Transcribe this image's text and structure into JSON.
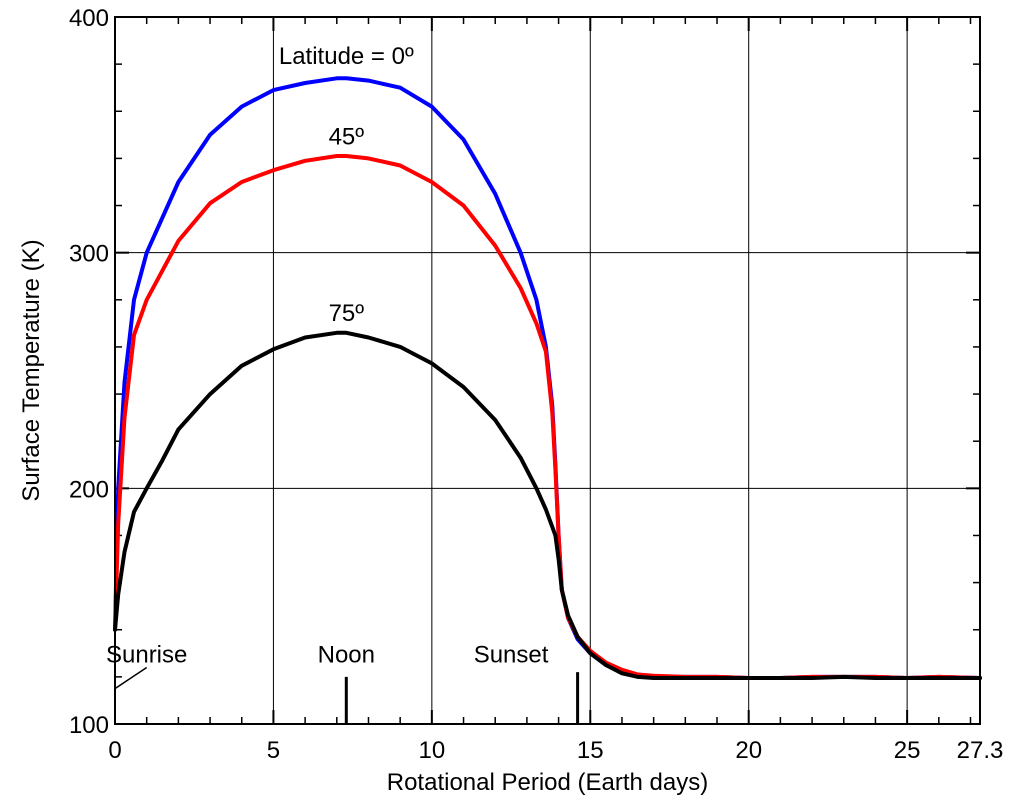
{
  "chart_data": {
    "type": "line",
    "title": "",
    "xlabel": "Rotational Period (Earth days)",
    "ylabel": "Surface Temperature (K)",
    "xlim": [
      0,
      27.3
    ],
    "ylim": [
      100,
      400
    ],
    "x_ticks": [
      0,
      5,
      10,
      15,
      20,
      25,
      27.3
    ],
    "x_tick_labels": [
      "0",
      "5",
      "10",
      "15",
      "20",
      "25",
      "27.3"
    ],
    "y_ticks": [
      100,
      200,
      300,
      400
    ],
    "y_tick_labels": [
      "100",
      "200",
      "300",
      "400"
    ],
    "grid": true,
    "series": [
      {
        "name": "Latitude = 0º",
        "color": "#0000ff",
        "x": [
          0.0,
          0.1,
          0.3,
          0.6,
          1.0,
          2.0,
          3.0,
          4.0,
          5.0,
          6.0,
          7.0,
          7.3,
          8.0,
          9.0,
          10.0,
          11.0,
          12.0,
          12.8,
          13.3,
          13.6,
          13.8,
          13.9,
          14.0,
          14.1,
          14.3,
          14.6,
          15.0,
          15.5,
          16.0,
          16.5,
          17.0,
          18.0,
          19.0,
          20.0,
          21.0,
          22.0,
          23.0,
          24.0,
          25.0,
          26.0,
          27.3
        ],
        "y": [
          140,
          200,
          245,
          280,
          300,
          330,
          350,
          362,
          369,
          372,
          374,
          374,
          373,
          370,
          362,
          348,
          325,
          300,
          280,
          260,
          235,
          210,
          180,
          157,
          145,
          136,
          130,
          125,
          122,
          121,
          120,
          120,
          120,
          119.5,
          119.5,
          120,
          120,
          120,
          119.5,
          120,
          119.5
        ]
      },
      {
        "name": "45º",
        "color": "#ff0000",
        "x": [
          0.0,
          0.1,
          0.3,
          0.6,
          1.0,
          2.0,
          3.0,
          4.0,
          5.0,
          6.0,
          7.0,
          7.3,
          8.0,
          9.0,
          10.0,
          11.0,
          12.0,
          12.8,
          13.3,
          13.6,
          13.8,
          13.9,
          14.0,
          14.1,
          14.3,
          14.6,
          15.0,
          15.5,
          16.0,
          16.5,
          17.0,
          18.0,
          19.0,
          20.0,
          21.0,
          22.0,
          23.0,
          24.0,
          25.0,
          26.0,
          27.3
        ],
        "y": [
          140,
          185,
          230,
          265,
          280,
          305,
          321,
          330,
          335,
          339,
          341,
          341,
          340,
          337,
          330,
          320,
          303,
          285,
          270,
          258,
          232,
          208,
          180,
          157,
          145,
          137,
          131,
          126,
          123,
          121,
          120.5,
          120,
          120,
          119.5,
          119.5,
          120,
          120,
          120,
          119.5,
          120,
          119.5
        ]
      },
      {
        "name": "75º",
        "color": "#000000",
        "x": [
          0.0,
          0.1,
          0.3,
          0.6,
          1.0,
          1.5,
          2.0,
          3.0,
          4.0,
          5.0,
          6.0,
          7.0,
          7.3,
          8.0,
          9.0,
          10.0,
          11.0,
          12.0,
          12.8,
          13.3,
          13.6,
          13.9,
          14.0,
          14.1,
          14.3,
          14.6,
          15.0,
          15.5,
          16.0,
          16.5,
          17.0,
          18.0,
          19.0,
          20.0,
          21.0,
          22.0,
          23.0,
          24.0,
          25.0,
          26.0,
          27.3
        ],
        "y": [
          140,
          155,
          173,
          190,
          200,
          212,
          225,
          240,
          252,
          259,
          264,
          266,
          266,
          264,
          260,
          253,
          243,
          229,
          213,
          200,
          191,
          180,
          170,
          157,
          146,
          137,
          130,
          125,
          121.5,
          120,
          119.5,
          119.5,
          119.5,
          119.5,
          119.5,
          119.5,
          120,
          119.5,
          119.5,
          119.5,
          119.5
        ]
      }
    ],
    "annotations": [
      {
        "text": "Latitude = 0º",
        "x": 7.3,
        "y": 380
      },
      {
        "text": "45º",
        "x": 7.3,
        "y": 346
      },
      {
        "text": "75º",
        "x": 7.3,
        "y": 271
      },
      {
        "text": "Sunrise",
        "x": 1.0,
        "y": 126
      },
      {
        "text": "Noon",
        "x": 7.3,
        "y": 126
      },
      {
        "text": "Sunset",
        "x": 12.5,
        "y": 126
      }
    ],
    "event_markers": [
      {
        "name": "Noon",
        "x": 7.3,
        "y_top": 120
      },
      {
        "name": "Sunset",
        "x": 14.6,
        "y_top": 122
      }
    ],
    "sunrise_pointer": {
      "from": [
        1.0,
        124
      ],
      "to": [
        0.0,
        115
      ]
    }
  }
}
